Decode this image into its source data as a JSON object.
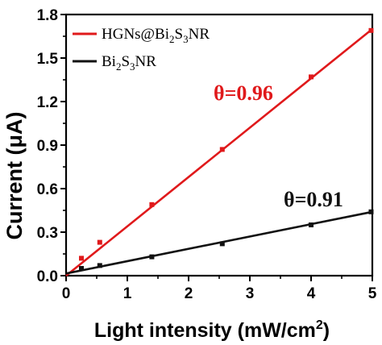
{
  "chart_data": {
    "type": "scatter",
    "xlabel": "Light intensity (mW/cm",
    "xlabel_sup": "2",
    "xlabel_suffix": ")",
    "ylabel": "Current (μA)",
    "xlim": [
      0,
      5
    ],
    "ylim": [
      0,
      1.8
    ],
    "xticks": [
      "0",
      "1",
      "2",
      "3",
      "4",
      "5"
    ],
    "yticks": [
      "0.0",
      "0.3",
      "0.6",
      "0.9",
      "1.2",
      "1.5",
      "1.8"
    ],
    "grid": false,
    "legend": {
      "position": "top-left",
      "entries": [
        {
          "label_main": "HGNs@Bi",
          "sub1": "2",
          "label_mid": "S",
          "sub2": "3",
          "label_end": "NR",
          "color": "#e0191b"
        },
        {
          "label_main": "Bi",
          "sub1": "2",
          "label_mid": "S",
          "sub2": "3",
          "label_end": "NR",
          "color": "#111111"
        }
      ]
    },
    "series": [
      {
        "color": "#e0191b",
        "points": [
          {
            "x": 0.25,
            "y": 0.12
          },
          {
            "x": 0.55,
            "y": 0.23
          },
          {
            "x": 1.4,
            "y": 0.49
          },
          {
            "x": 2.55,
            "y": 0.87
          },
          {
            "x": 4.0,
            "y": 1.37
          },
          {
            "x": 4.98,
            "y": 1.69
          }
        ],
        "fit": [
          [
            0,
            0.0
          ],
          [
            5,
            1.7
          ]
        ],
        "annotation": "θ=0.96"
      },
      {
        "color": "#111111",
        "points": [
          {
            "x": 0.25,
            "y": 0.05
          },
          {
            "x": 0.55,
            "y": 0.07
          },
          {
            "x": 1.4,
            "y": 0.13
          },
          {
            "x": 2.55,
            "y": 0.22
          },
          {
            "x": 4.0,
            "y": 0.35
          },
          {
            "x": 4.98,
            "y": 0.44
          }
        ],
        "fit": [
          [
            0,
            0.015
          ],
          [
            5,
            0.44
          ]
        ],
        "annotation": "θ=0.91"
      }
    ]
  }
}
